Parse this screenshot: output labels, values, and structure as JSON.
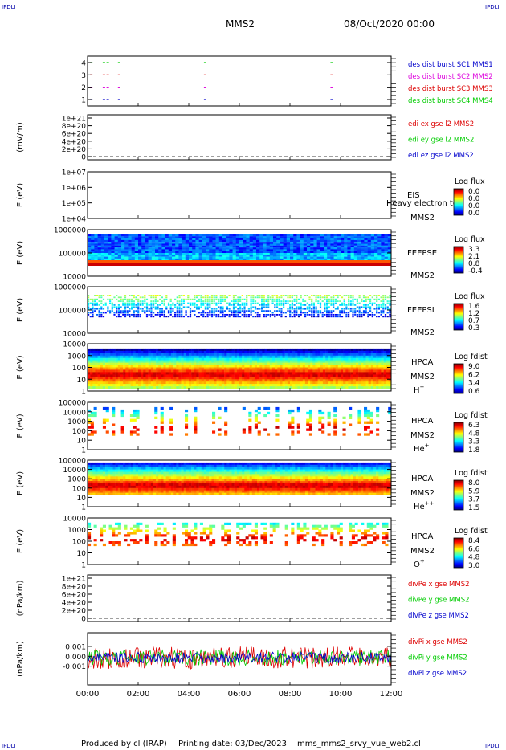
{
  "corner_label": "IPDLI",
  "header": {
    "spacecraft": "MMS2",
    "date": "08/Oct/2020 00:00"
  },
  "footer": {
    "producer": "Produced by cl (IRAP)",
    "printing": "Printing date: 03/Dec/2023",
    "script": "mms_mms2_srvy_vue_web2.cl"
  },
  "colors": {
    "red": "#dd0000",
    "green": "#00cc00",
    "blue": "#0000cc",
    "magenta": "#dd00dd"
  },
  "chart_data": [
    {
      "id": "des-dist",
      "type": "scatter",
      "ylabel": "",
      "yticks": [
        "1",
        "2",
        "3",
        "4"
      ],
      "legend": [
        {
          "text": "des dist burst SC1 MMS1",
          "color": "#0000cc"
        },
        {
          "text": "des dist burst SC2 MMS2",
          "color": "#dd00dd"
        },
        {
          "text": "des dist burst SC3 MMS3",
          "color": "#dd0000"
        },
        {
          "text": "des dist burst SC4 MMS4",
          "color": "#00cc00"
        }
      ],
      "x_hours": [
        0.1,
        0.6,
        0.75,
        1.2,
        4.6,
        9.6
      ]
    },
    {
      "id": "edi",
      "type": "line",
      "ylabel": "(mV/m)",
      "yticks": [
        "0",
        "2e+20",
        "4e+20",
        "6e+20",
        "8e+20",
        "1e+21"
      ],
      "legend": [
        {
          "text": "edi ex gse l2 MMS2",
          "color": "#dd0000"
        },
        {
          "text": "edi ey gse l2 MMS2",
          "color": "#00cc00"
        },
        {
          "text": "edi ez gse l2 MMS2",
          "color": "#0000cc"
        }
      ]
    },
    {
      "id": "eis",
      "type": "heatmap",
      "ylabel": "E (eV)",
      "yticks": [
        "1e+04",
        "1e+05",
        "1e+06",
        "1e+07"
      ],
      "instrument": [
        "EIS",
        "MMS2"
      ],
      "overlay": "Heavy electron to",
      "colorbar": {
        "title": "Log flux",
        "ticks": [
          "0.0",
          "0.0",
          "0.0",
          "0.0"
        ]
      }
    },
    {
      "id": "feepse",
      "type": "heatmap",
      "ylabel": "E (eV)",
      "yticks": [
        "10000",
        "100000",
        "1000000"
      ],
      "instrument": [
        "FEEPSE",
        "MMS2"
      ],
      "colorbar": {
        "title": "Log flux",
        "ticks": [
          "3.3",
          "2.1",
          "0.8",
          "-0.4"
        ]
      }
    },
    {
      "id": "feepsi",
      "type": "heatmap",
      "ylabel": "E (eV)",
      "yticks": [
        "10000",
        "100000",
        "1000000"
      ],
      "instrument": [
        "FEEPSI",
        "MMS2"
      ],
      "colorbar": {
        "title": "Log flux",
        "ticks": [
          "1.6",
          "1.2",
          "0.7",
          "0.3"
        ]
      }
    },
    {
      "id": "hpca-h",
      "type": "heatmap",
      "ylabel": "E (eV)",
      "yticks": [
        "1",
        "10",
        "100",
        "1000",
        "10000"
      ],
      "instrument": [
        "HPCA",
        "MMS2"
      ],
      "species": "H",
      "charge": "+",
      "colorbar": {
        "title": "Log fdist",
        "ticks": [
          "9.0",
          "6.2",
          "3.4",
          "0.6"
        ]
      }
    },
    {
      "id": "hpca-he1",
      "type": "heatmap",
      "ylabel": "E (eV)",
      "yticks": [
        "1",
        "10",
        "100",
        "1000",
        "10000",
        "100000"
      ],
      "instrument": [
        "HPCA",
        "MMS2"
      ],
      "species": "He",
      "charge": "+",
      "colorbar": {
        "title": "Log fdist",
        "ticks": [
          "6.3",
          "4.8",
          "3.3",
          "1.8"
        ]
      }
    },
    {
      "id": "hpca-he2",
      "type": "heatmap",
      "ylabel": "E (eV)",
      "yticks": [
        "1",
        "10",
        "100",
        "1000",
        "10000",
        "100000"
      ],
      "instrument": [
        "HPCA",
        "MMS2"
      ],
      "species": "He",
      "charge": "++",
      "colorbar": {
        "title": "Log fdist",
        "ticks": [
          "8.0",
          "5.9",
          "3.7",
          "1.5"
        ]
      }
    },
    {
      "id": "hpca-o",
      "type": "heatmap",
      "ylabel": "E (eV)",
      "yticks": [
        "1",
        "10",
        "100",
        "1000",
        "10000"
      ],
      "instrument": [
        "HPCA",
        "MMS2"
      ],
      "species": "O",
      "charge": "+",
      "colorbar": {
        "title": "Log fdist",
        "ticks": [
          "8.4",
          "6.6",
          "4.8",
          "3.0"
        ]
      }
    },
    {
      "id": "divpe",
      "type": "line",
      "ylabel": "(nPa/km)",
      "yticks": [
        "0",
        "2e+20",
        "4e+20",
        "6e+20",
        "8e+20",
        "1e+21"
      ],
      "legend": [
        {
          "text": "divPe x gse MMS2",
          "color": "#dd0000"
        },
        {
          "text": "divPe y gse MMS2",
          "color": "#00cc00"
        },
        {
          "text": "divPe z gse MMS2",
          "color": "#0000cc"
        }
      ]
    },
    {
      "id": "divpi",
      "type": "line",
      "ylabel": "(nPa/km)",
      "yticks": [
        "-0.001",
        "0.000",
        "0.001"
      ],
      "legend": [
        {
          "text": "divPi x gse MMS2",
          "color": "#dd0000"
        },
        {
          "text": "divPi y gse MMS2",
          "color": "#00cc00"
        },
        {
          "text": "divPi z gse MMS2",
          "color": "#0000cc"
        }
      ]
    }
  ],
  "xaxis": {
    "ticks": [
      "00:00",
      "02:00",
      "04:00",
      "06:00",
      "08:00",
      "10:00",
      "12:00"
    ],
    "range_hours": [
      0,
      12
    ]
  }
}
